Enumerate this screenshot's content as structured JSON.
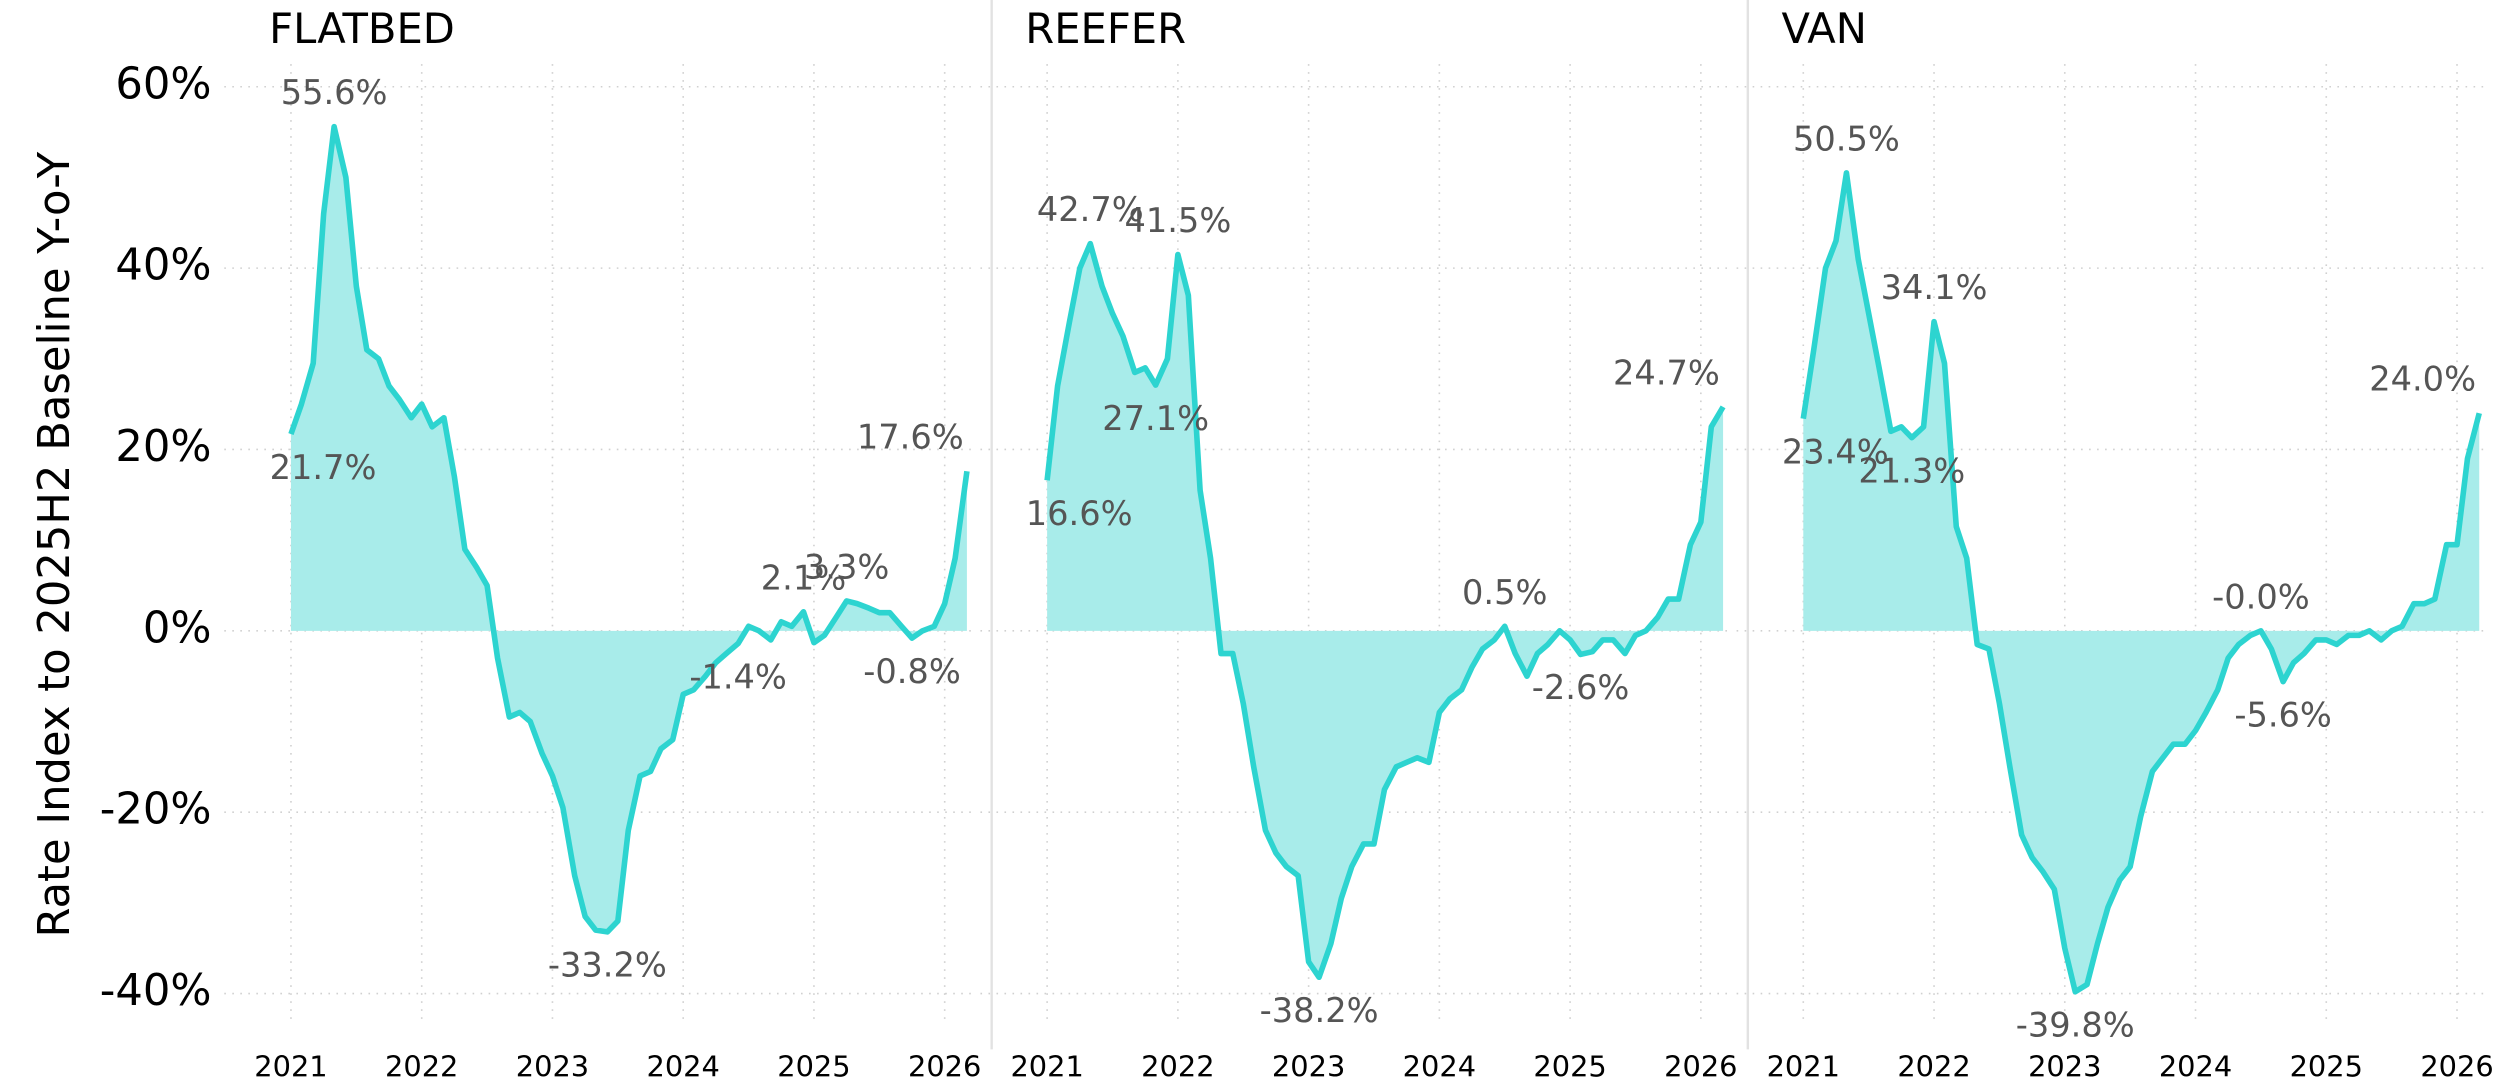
{
  "chart_data": [
    {
      "type": "area",
      "title": "FLATBED",
      "ylabel": "Rate Index to 2025H2 Baseline Y-o-Y",
      "color": "#2dd4d0",
      "fill": "#a8ecea",
      "grid": true,
      "x": [
        2021.0,
        2021.08,
        2021.17,
        2021.25,
        2021.33,
        2021.42,
        2021.5,
        2021.58,
        2021.67,
        2021.75,
        2021.83,
        2021.92,
        2022.0,
        2022.08,
        2022.17,
        2022.25,
        2022.33,
        2022.42,
        2022.5,
        2022.58,
        2022.67,
        2022.75,
        2022.83,
        2022.92,
        2023.0,
        2023.08,
        2023.17,
        2023.25,
        2023.33,
        2023.42,
        2023.5,
        2023.58,
        2023.67,
        2023.75,
        2023.83,
        2023.92,
        2024.0,
        2024.08,
        2024.17,
        2024.25,
        2024.33,
        2024.42,
        2024.5,
        2024.58,
        2024.67,
        2024.75,
        2024.83,
        2024.92,
        2025.0,
        2025.08,
        2025.17,
        2025.25,
        2025.33,
        2025.42,
        2025.5,
        2025.58,
        2025.67,
        2025.75,
        2025.83,
        2025.92,
        2026.0,
        2026.08,
        2026.17
      ],
      "values": [
        21.7,
        25,
        29.5,
        46,
        55.6,
        50,
        38,
        31,
        30,
        27,
        25.5,
        23.5,
        25,
        22.5,
        23.5,
        17,
        9,
        7,
        5,
        -3,
        -9.5,
        -9,
        -10,
        -13.5,
        -16,
        -19.5,
        -27,
        -31.5,
        -33,
        -33.2,
        -32,
        -22,
        -16,
        -15.5,
        -13,
        -12,
        -7,
        -6.5,
        -5,
        -3.5,
        -2.5,
        -1.4,
        0.5,
        0,
        -1,
        1,
        0.5,
        2.1,
        -1.3,
        -0.5,
        1.5,
        3.3,
        3,
        2.5,
        2,
        2,
        0.5,
        -0.8,
        0,
        0.5,
        3,
        8,
        17.6
      ],
      "value_labels": [
        "21.7%",
        null,
        null,
        null,
        "55.6%",
        null,
        null,
        null,
        null,
        null,
        null,
        null,
        null,
        null,
        null,
        null,
        null,
        null,
        null,
        null,
        null,
        null,
        null,
        null,
        null,
        null,
        null,
        null,
        null,
        "-33.2%",
        null,
        null,
        null,
        null,
        null,
        null,
        null,
        null,
        null,
        null,
        null,
        "-1.4%",
        null,
        null,
        null,
        null,
        null,
        "2.1%",
        null,
        null,
        null,
        "3.3%",
        null,
        null,
        null,
        null,
        null,
        "-0.8%",
        null,
        null,
        null,
        null,
        "17.6%"
      ],
      "xlim": [
        2020.49,
        2026.2
      ],
      "ylim": [
        -43.5,
        62.5
      ],
      "xticks": [
        2021,
        2022,
        2023,
        2024,
        2025,
        2026
      ],
      "yticks": [
        {
          "value": -40,
          "label": "-40%"
        },
        {
          "value": -20,
          "label": "-20%"
        },
        {
          "value": 0,
          "label": "0%"
        },
        {
          "value": 20,
          "label": "20%"
        },
        {
          "value": 40,
          "label": "40%"
        },
        {
          "value": 60,
          "label": "60%"
        }
      ]
    },
    {
      "type": "area",
      "title": "REEFER",
      "color": "#2dd4d0",
      "fill": "#a8ecea",
      "grid": true,
      "x": [
        2021.0,
        2021.08,
        2021.17,
        2021.25,
        2021.33,
        2021.42,
        2021.5,
        2021.58,
        2021.67,
        2021.75,
        2021.83,
        2021.92,
        2022.0,
        2022.08,
        2022.17,
        2022.25,
        2022.33,
        2022.42,
        2022.5,
        2022.58,
        2022.67,
        2022.75,
        2022.83,
        2022.92,
        2023.0,
        2023.08,
        2023.17,
        2023.25,
        2023.33,
        2023.42,
        2023.5,
        2023.58,
        2023.67,
        2023.75,
        2023.83,
        2023.92,
        2024.0,
        2024.08,
        2024.17,
        2024.25,
        2024.33,
        2024.42,
        2024.5,
        2024.58,
        2024.67,
        2024.75,
        2024.83,
        2024.92,
        2025.0,
        2025.08,
        2025.17,
        2025.25,
        2025.33,
        2025.42,
        2025.5,
        2025.58,
        2025.67,
        2025.75,
        2025.83,
        2025.92,
        2026.0,
        2026.08,
        2026.17
      ],
      "values": [
        16.6,
        27,
        34,
        40,
        42.7,
        38,
        35,
        32.5,
        28.5,
        29,
        27.1,
        30,
        41.5,
        37,
        15.5,
        8,
        -2.5,
        -2.5,
        -8,
        -15,
        -22,
        -24.5,
        -26,
        -27,
        -36.5,
        -38.2,
        -34.5,
        -29.5,
        -26,
        -23.5,
        -23.5,
        -17.5,
        -15,
        -14.5,
        -14,
        -14.5,
        -9,
        -7.5,
        -6.5,
        -4,
        -2,
        -1,
        0.5,
        -2.5,
        -5,
        -2.5,
        -1.5,
        0,
        -1,
        -2.6,
        -2.3,
        -1,
        -1,
        -2.5,
        -0.5,
        0,
        1.5,
        3.5,
        3.5,
        9.5,
        12,
        22.5,
        24.7
      ],
      "value_labels": [
        "16.6%",
        null,
        null,
        null,
        "42.7%",
        null,
        null,
        null,
        null,
        null,
        "27.1%",
        null,
        "41.5%",
        null,
        null,
        null,
        null,
        null,
        null,
        null,
        null,
        null,
        null,
        null,
        null,
        "-38.2%",
        null,
        null,
        null,
        null,
        null,
        null,
        null,
        null,
        null,
        null,
        null,
        null,
        null,
        null,
        null,
        null,
        "0.5%",
        null,
        null,
        null,
        null,
        null,
        null,
        "-2.6%",
        null,
        null,
        null,
        null,
        null,
        null,
        null,
        null,
        null,
        null,
        null,
        null,
        "24.7%"
      ],
      "xlim": [
        2020.49,
        2026.2
      ],
      "ylim": [
        -43.5,
        62.5
      ],
      "xticks": [
        2021,
        2022,
        2023,
        2024,
        2025,
        2026
      ],
      "yticks": [
        -40,
        -20,
        0,
        20,
        40,
        60
      ]
    },
    {
      "type": "area",
      "title": "VAN",
      "color": "#2dd4d0",
      "fill": "#a8ecea",
      "grid": true,
      "x": [
        2021.0,
        2021.08,
        2021.17,
        2021.25,
        2021.33,
        2021.42,
        2021.5,
        2021.58,
        2021.67,
        2021.75,
        2021.83,
        2021.92,
        2022.0,
        2022.08,
        2022.17,
        2022.25,
        2022.33,
        2022.42,
        2022.5,
        2022.58,
        2022.67,
        2022.75,
        2022.83,
        2022.92,
        2023.0,
        2023.08,
        2023.17,
        2023.25,
        2023.33,
        2023.42,
        2023.5,
        2023.58,
        2023.67,
        2023.75,
        2023.83,
        2023.92,
        2024.0,
        2024.08,
        2024.17,
        2024.25,
        2024.33,
        2024.42,
        2024.5,
        2024.58,
        2024.67,
        2024.75,
        2024.83,
        2024.92,
        2025.0,
        2025.08,
        2025.17,
        2025.25,
        2025.33,
        2025.42,
        2025.5,
        2025.58,
        2025.67,
        2025.75,
        2025.83,
        2025.92,
        2026.0,
        2026.08,
        2026.17
      ],
      "values": [
        23.4,
        31,
        40,
        43,
        50.5,
        41,
        35,
        29,
        22,
        22.5,
        21.3,
        22.5,
        34.1,
        29.5,
        11.5,
        8,
        -1.5,
        -2,
        -8,
        -15,
        -22.5,
        -25,
        -26.5,
        -28.5,
        -35,
        -39.8,
        -39,
        -34.5,
        -30.5,
        -27.5,
        -26,
        -20.5,
        -15.5,
        -14,
        -12.5,
        -12.5,
        -11,
        -9,
        -6.5,
        -3,
        -1.5,
        -0.5,
        0,
        -2,
        -5.6,
        -3.5,
        -2.5,
        -1,
        -1,
        -1.5,
        -0.5,
        -0.5,
        0,
        -1,
        0,
        0.5,
        3,
        3,
        3.5,
        9.5,
        9.5,
        19,
        24
      ],
      "value_labels": [
        "23.4%",
        null,
        null,
        null,
        "50.5%",
        null,
        null,
        null,
        null,
        null,
        "21.3%",
        null,
        "34.1%",
        null,
        null,
        null,
        null,
        null,
        null,
        null,
        null,
        null,
        null,
        null,
        null,
        "-39.8%",
        null,
        null,
        null,
        null,
        null,
        null,
        null,
        null,
        null,
        null,
        null,
        null,
        null,
        null,
        null,
        null,
        "-0.0%",
        null,
        "-5.6%",
        null,
        null,
        null,
        null,
        null,
        null,
        null,
        null,
        null,
        null,
        null,
        null,
        null,
        null,
        null,
        null,
        null,
        "24.0%"
      ],
      "xlim": [
        2020.49,
        2026.2
      ],
      "ylim": [
        -43.5,
        62.5
      ],
      "xticks": [
        2021,
        2022,
        2023,
        2024,
        2025,
        2026
      ],
      "yticks": [
        -40,
        -20,
        0,
        20,
        40,
        60
      ]
    }
  ]
}
